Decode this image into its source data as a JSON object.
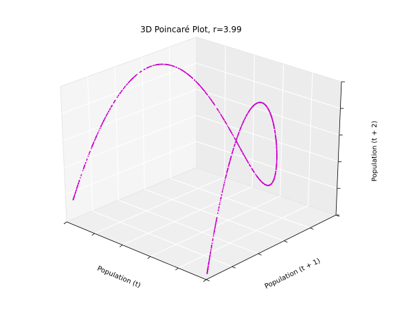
{
  "chart_data": {
    "type": "scatter",
    "title": "3D Poincaré Plot, r=3.99",
    "xlabel": "Population (t)",
    "ylabel": "Population (t + 1)",
    "zlabel": "Population (t + 2)",
    "grid": true,
    "tick_labels_shown": false,
    "r": 3.99,
    "series": [
      {
        "color": "#cc00cc",
        "marker": "dot"
      }
    ]
  }
}
